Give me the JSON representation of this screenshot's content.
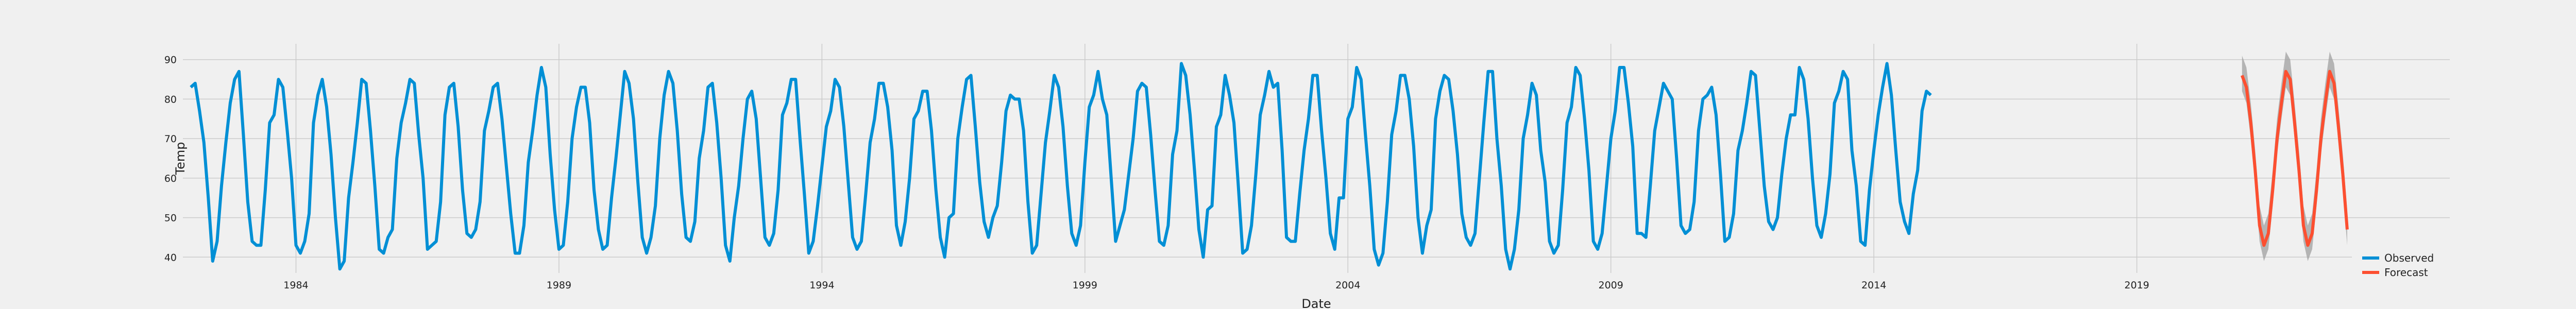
{
  "chart_data": {
    "type": "line",
    "title": "",
    "xlabel": "Date",
    "ylabel": "Temp",
    "xlim": [
      1981.85,
      2024.95
    ],
    "ylim": [
      36.0,
      94.0
    ],
    "x_ticks": [
      1984,
      1989,
      1994,
      1999,
      2004,
      2009,
      2014,
      2019
    ],
    "x_tick_labels": [
      "1984",
      "1989",
      "1994",
      "1999",
      "2004",
      "2009",
      "2014",
      "2019"
    ],
    "y_ticks": [
      40,
      50,
      60,
      70,
      80,
      90
    ],
    "y_tick_labels": [
      "40",
      "50",
      "60",
      "70",
      "80",
      "90"
    ],
    "grid": true,
    "legend_position": "bottom-right",
    "colors": {
      "observed": "#008fd5",
      "forecast": "#fc4f30",
      "band": "#a0a0a0"
    },
    "series": [
      {
        "name": "Observed",
        "kind": "line",
        "start_year": 1982.0,
        "step_years": 0.083333,
        "values": [
          83,
          84,
          77,
          69,
          55,
          39,
          44,
          58,
          69,
          79,
          85,
          87,
          71,
          54,
          44,
          43,
          43,
          57,
          74,
          76,
          85,
          83,
          72,
          60,
          43,
          41,
          44,
          51,
          74,
          81,
          85,
          78,
          66,
          50,
          37,
          39,
          55,
          64,
          74,
          85,
          84,
          72,
          58,
          42,
          41,
          45,
          47,
          65,
          74,
          79,
          85,
          84,
          71,
          60,
          42,
          43,
          44,
          54,
          76,
          83,
          84,
          73,
          57,
          46,
          45,
          47,
          54,
          72,
          77,
          83,
          84,
          75,
          63,
          51,
          41,
          41,
          48,
          64,
          72,
          81,
          88,
          83,
          66,
          52,
          42,
          43,
          54,
          70,
          78,
          83,
          83,
          74,
          57,
          47,
          42,
          43,
          55,
          65,
          76,
          87,
          84,
          75,
          59,
          45,
          41,
          45,
          53,
          70,
          81,
          87,
          84,
          72,
          56,
          45,
          44,
          49,
          65,
          72,
          83,
          84,
          74,
          60,
          43,
          39,
          50,
          58,
          70,
          80,
          82,
          75,
          60,
          45,
          43,
          46,
          57,
          76,
          79,
          85,
          85,
          70,
          56,
          41,
          44,
          53,
          63,
          73,
          77,
          85,
          83,
          73,
          59,
          45,
          42,
          44,
          56,
          69,
          75,
          84,
          84,
          78,
          67,
          48,
          43,
          49,
          60,
          75,
          77,
          82,
          82,
          72,
          57,
          45,
          40,
          50,
          51,
          70,
          78,
          85,
          86,
          73,
          59,
          49,
          45,
          50,
          53,
          64,
          77,
          81,
          80,
          80,
          72,
          54,
          41,
          43,
          56,
          69,
          77,
          86,
          83,
          73,
          58,
          46,
          43,
          48,
          64,
          78,
          81,
          87,
          80,
          76,
          60,
          44,
          48,
          52,
          61,
          70,
          82,
          84,
          83,
          71,
          57,
          44,
          43,
          48,
          66,
          72,
          89,
          86,
          76,
          62,
          47,
          40,
          52,
          53,
          73,
          76,
          86,
          81,
          74,
          58,
          41,
          42,
          48,
          61,
          76,
          81,
          87,
          83,
          84,
          67,
          45,
          44,
          44,
          56,
          67,
          75,
          86,
          86,
          72,
          60,
          46,
          42,
          55,
          55,
          75,
          78,
          88,
          85,
          71,
          58,
          42,
          38,
          41,
          54,
          71,
          77,
          86,
          86,
          80,
          68,
          50,
          41,
          48,
          52,
          75,
          82,
          86,
          85,
          77,
          66,
          51,
          45,
          43,
          46,
          60,
          74,
          87,
          87,
          70,
          58,
          42,
          37,
          42,
          52,
          70,
          76,
          84,
          81,
          67,
          59,
          44,
          41,
          43,
          57,
          74,
          78,
          88,
          86,
          75,
          62,
          44,
          42,
          46,
          58,
          70,
          77,
          88,
          88,
          79,
          68,
          46,
          46,
          45,
          58,
          72,
          78,
          84,
          82,
          80,
          65,
          48,
          46,
          47,
          54,
          72,
          80,
          81,
          83,
          76,
          61,
          44,
          45,
          51,
          67,
          72,
          79,
          87,
          86,
          72,
          58,
          49,
          47,
          50,
          61,
          70,
          76,
          76,
          88,
          85,
          75,
          60,
          48,
          45,
          51,
          61,
          79,
          82,
          87,
          85,
          67,
          58,
          44,
          43,
          57,
          67,
          76,
          83,
          89,
          81,
          67,
          54,
          49,
          46,
          56,
          62,
          77,
          82,
          81
        ]
      },
      {
        "name": "Forecast",
        "kind": "line",
        "start_year": 2021.0,
        "step_years": 0.083333,
        "values": [
          86,
          83,
          74,
          62,
          48,
          43,
          46,
          57,
          70,
          79,
          87,
          85,
          74,
          62,
          48,
          43,
          46,
          57,
          70,
          79,
          87,
          84,
          73,
          61,
          47
        ],
        "lower": [
          82,
          79,
          70,
          58,
          44,
          39,
          42,
          53,
          66,
          75,
          83,
          81,
          70,
          58,
          44,
          39,
          42,
          53,
          66,
          75,
          83,
          80,
          69,
          57,
          43
        ],
        "upper": [
          91,
          88,
          79,
          67,
          53,
          48,
          51,
          62,
          75,
          84,
          92,
          90,
          79,
          67,
          53,
          48,
          51,
          62,
          75,
          84,
          92,
          89,
          78,
          66,
          52
        ]
      }
    ]
  }
}
